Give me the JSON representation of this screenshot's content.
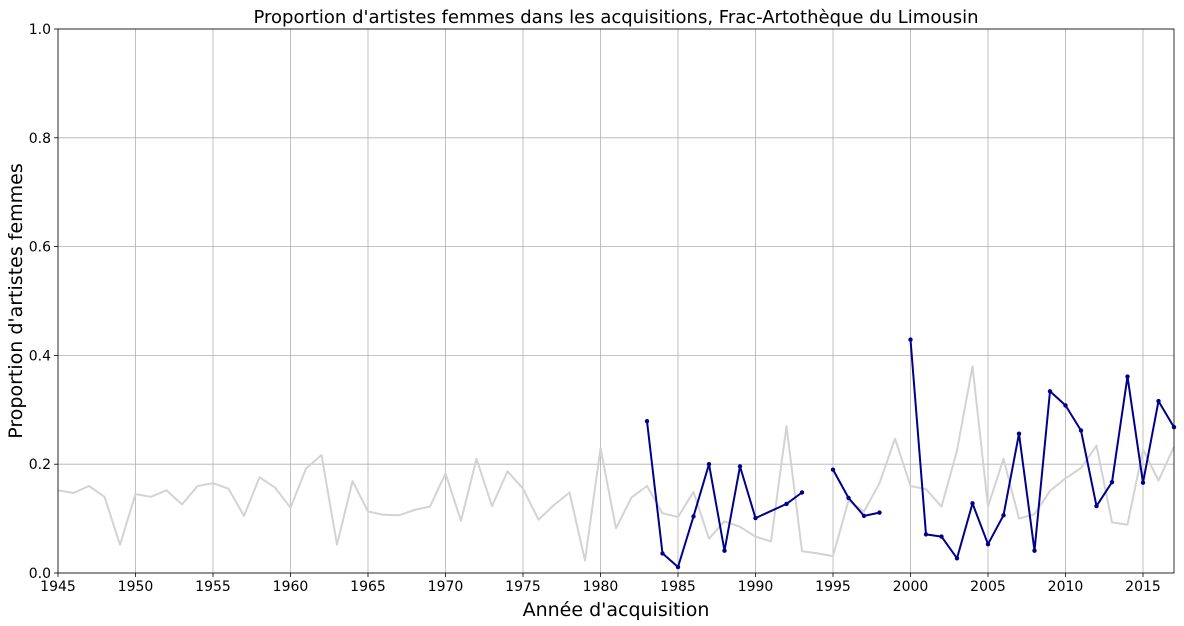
{
  "chart_data": {
    "type": "line",
    "title": "Proportion d'artistes femmes dans les acquisitions, Frac-Artothèque du Limousin",
    "xlabel": "Année d'acquisition",
    "ylabel": "Proportion d'artistes femmes",
    "xlim": [
      1945,
      2017
    ],
    "ylim": [
      0,
      1.0
    ],
    "xticks": [
      "1945",
      "1950",
      "1955",
      "1960",
      "1965",
      "1970",
      "1975",
      "1980",
      "1985",
      "1990",
      "1995",
      "2000",
      "2005",
      "2010",
      "2015"
    ],
    "yticks": [
      "0.0",
      "0.2",
      "0.4",
      "0.6",
      "0.8",
      "1.0"
    ],
    "grid": true,
    "series": [
      {
        "color": "#d3d3d3",
        "marker": false,
        "x": [
          1945,
          1946,
          1947,
          1948,
          1949,
          1950,
          1951,
          1952,
          1953,
          1954,
          1955,
          1956,
          1957,
          1958,
          1959,
          1960,
          1961,
          1962,
          1963,
          1964,
          1965,
          1966,
          1967,
          1968,
          1969,
          1970,
          1971,
          1972,
          1973,
          1974,
          1975,
          1976,
          1977,
          1978,
          1979,
          1980,
          1981,
          1982,
          1983,
          1984,
          1985,
          1986,
          1987,
          1988,
          1989,
          1990,
          1991,
          1992,
          1993,
          1994,
          1995,
          1996,
          1997,
          1998,
          1999,
          2000,
          2001,
          2002,
          2003,
          2004,
          2005,
          2006,
          2007,
          2008,
          2009,
          2010,
          2011,
          2012,
          2013,
          2014,
          2015,
          2016,
          2017
        ],
        "y": [
          0.152,
          0.147,
          0.16,
          0.14,
          0.052,
          0.145,
          0.14,
          0.152,
          0.126,
          0.16,
          0.165,
          0.155,
          0.105,
          0.176,
          0.157,
          0.12,
          0.192,
          0.217,
          0.052,
          0.169,
          0.113,
          0.107,
          0.106,
          0.116,
          0.122,
          0.183,
          0.096,
          0.21,
          0.123,
          0.187,
          0.155,
          0.098,
          0.125,
          0.148,
          0.023,
          0.229,
          0.082,
          0.139,
          0.16,
          0.11,
          0.103,
          0.149,
          0.063,
          0.095,
          0.085,
          0.067,
          0.058,
          0.27,
          0.04,
          0.036,
          0.031,
          0.133,
          0.113,
          0.165,
          0.247,
          0.16,
          0.154,
          0.122,
          0.225,
          0.38,
          0.122,
          0.21,
          0.1,
          0.108,
          0.151,
          0.174,
          0.193,
          0.234,
          0.093,
          0.089,
          0.227,
          0.17,
          0.232
        ]
      },
      {
        "color": "#00008b",
        "marker": true,
        "segments": [
          {
            "x": [
              1983,
              1984,
              1985,
              1986,
              1987,
              1988,
              1989,
              1990,
              1992,
              1993
            ],
            "y": [
              0.279,
              0.036,
              0.011,
              0.104,
              0.2,
              0.041,
              0.196,
              0.101,
              0.127,
              0.148
            ]
          },
          {
            "x": [
              1995,
              1996,
              1997,
              1998
            ],
            "y": [
              0.19,
              0.138,
              0.105,
              0.111
            ]
          },
          {
            "x": [
              2000,
              2001,
              2002,
              2003,
              2004,
              2005,
              2006,
              2007,
              2008,
              2009,
              2010,
              2011,
              2012,
              2013,
              2014,
              2015,
              2016,
              2017
            ],
            "y": [
              0.429,
              0.071,
              0.067,
              0.027,
              0.128,
              0.053,
              0.106,
              0.256,
              0.041,
              0.334,
              0.308,
              0.262,
              0.123,
              0.167,
              0.361,
              0.166,
              0.316,
              0.268
            ]
          }
        ]
      }
    ]
  }
}
